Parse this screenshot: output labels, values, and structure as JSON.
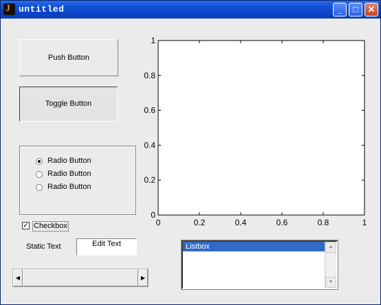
{
  "window": {
    "title": "untitled",
    "app_icon": "matlab-icon",
    "controls": [
      "minimize-icon",
      "maximize-icon",
      "close-icon"
    ]
  },
  "buttons": {
    "push_label": "Push Button",
    "toggle_label": "Toggle Button"
  },
  "radio_group": {
    "items": [
      {
        "label": "Radio Button",
        "selected": true
      },
      {
        "label": "Radio Button",
        "selected": false
      },
      {
        "label": "Radio Button",
        "selected": false
      }
    ]
  },
  "checkbox": {
    "label": "Checkbox",
    "checked": true
  },
  "static_text": "Static Text",
  "edit_text": {
    "value": "Edit Text"
  },
  "slider": {
    "value": 0
  },
  "listbox": {
    "items": [
      "Listbox"
    ],
    "selected": 0
  },
  "chart_data": {
    "type": "line",
    "x": [],
    "y": [],
    "xlim": [
      0,
      1
    ],
    "ylim": [
      0,
      1
    ],
    "xticks": [
      "0",
      "0.2",
      "0.4",
      "0.6",
      "0.8",
      "1"
    ],
    "yticks": [
      "0",
      "0.2",
      "0.4",
      "0.6",
      "0.8",
      "1"
    ],
    "grid": false,
    "title": "",
    "xlabel": "",
    "ylabel": ""
  }
}
